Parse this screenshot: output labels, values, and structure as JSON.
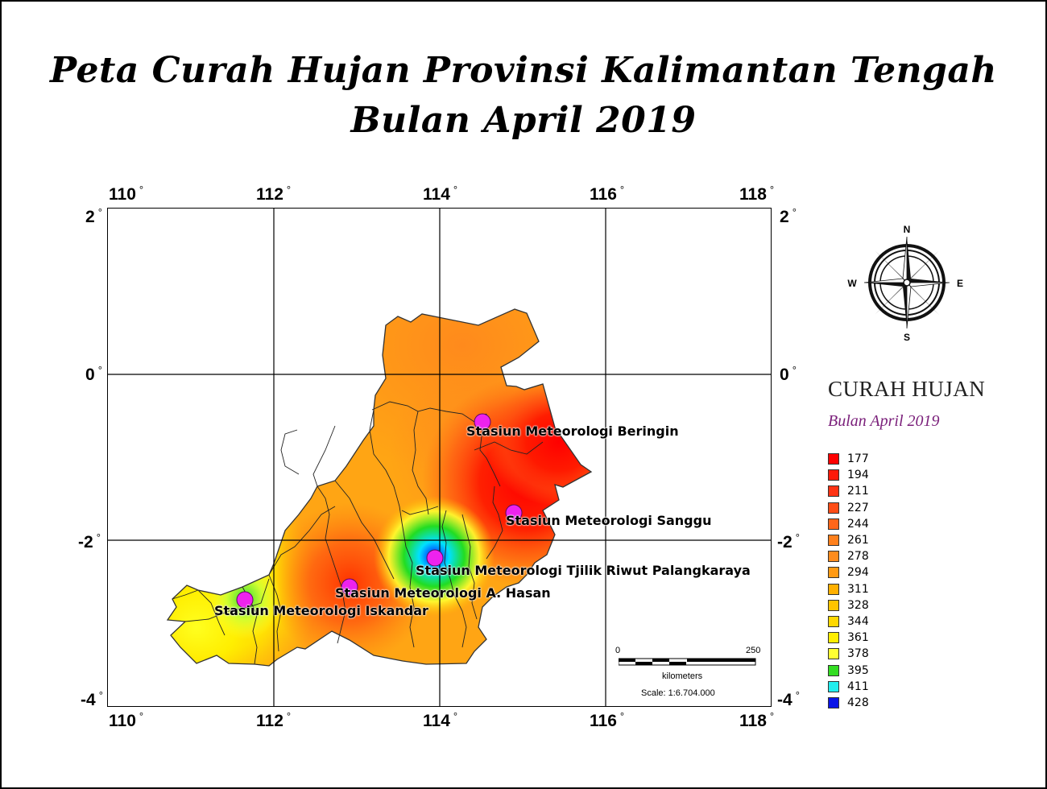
{
  "title": {
    "line1": "Peta Curah Hujan Provinsi Kalimantan Tengah",
    "line2": "Bulan April 2019"
  },
  "axes": {
    "longitudes": [
      "110",
      "112",
      "114",
      "116",
      "118"
    ],
    "latitudes": [
      "2",
      "0",
      "-2",
      "-4"
    ],
    "degree_symbol": "°"
  },
  "stations": [
    {
      "name": "Stasiun Meteorologi Beringin"
    },
    {
      "name": "Stasiun Meteorologi Sanggu"
    },
    {
      "name": "Stasiun Meteorologi  Tjilik Riwut Palangkaraya"
    },
    {
      "name": "Stasiun Meteorologi A. Hasan"
    },
    {
      "name": "Stasiun Meteorologi Iskandar"
    }
  ],
  "compass": {
    "n": "N",
    "s": "S",
    "e": "E",
    "w": "W"
  },
  "legend": {
    "title": "CURAH HUJAN",
    "subtitle": "Bulan April 2019",
    "items": [
      {
        "value": "177",
        "color": "#ff0000"
      },
      {
        "value": "194",
        "color": "#ff1a0a"
      },
      {
        "value": "211",
        "color": "#ff3314"
      },
      {
        "value": "227",
        "color": "#ff4d17"
      },
      {
        "value": "244",
        "color": "#ff661a"
      },
      {
        "value": "261",
        "color": "#ff801c"
      },
      {
        "value": "278",
        "color": "#ff8c1f"
      },
      {
        "value": "294",
        "color": "#ff9a14"
      },
      {
        "value": "311",
        "color": "#ffb000"
      },
      {
        "value": "328",
        "color": "#ffc400"
      },
      {
        "value": "344",
        "color": "#ffd800"
      },
      {
        "value": "361",
        "color": "#ffee00"
      },
      {
        "value": "378",
        "color": "#ffff33"
      },
      {
        "value": "395",
        "color": "#33dd22"
      },
      {
        "value": "411",
        "color": "#22eeee"
      },
      {
        "value": "428",
        "color": "#0a14e6"
      }
    ]
  },
  "scale": {
    "start": "0",
    "end": "250",
    "unit": "kilometers",
    "ratio": "Scale: 1:6.704.000"
  },
  "colors": {
    "station_marker": "#ee22ee",
    "grid_line": "#000000"
  }
}
